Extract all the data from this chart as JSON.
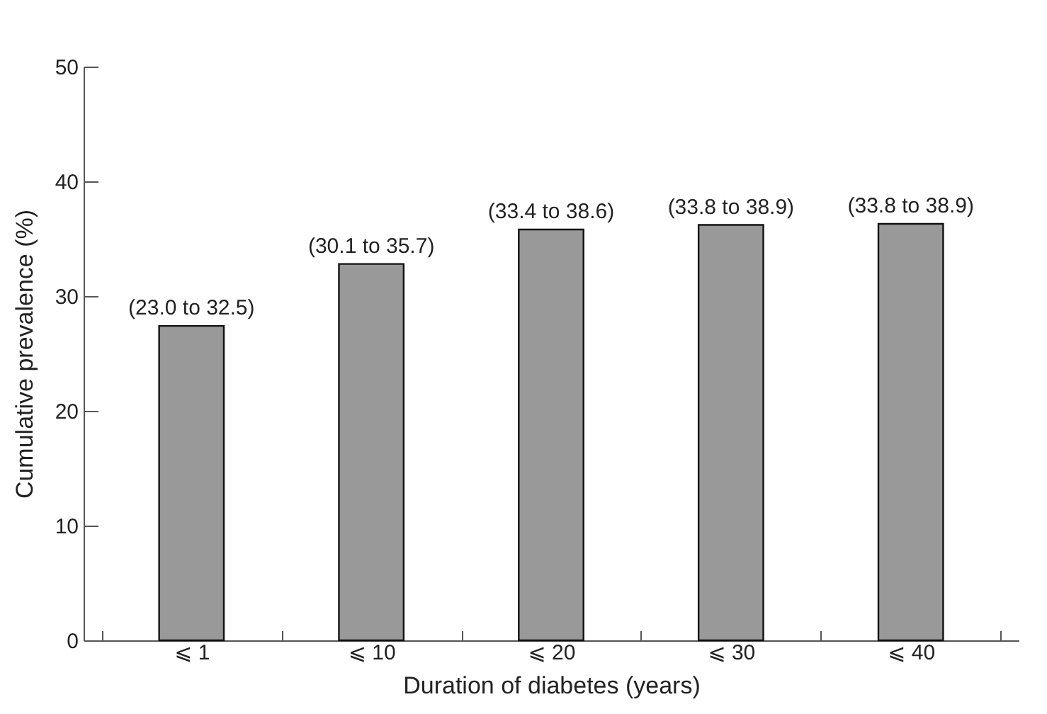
{
  "chart_data": {
    "type": "bar",
    "xlabel": "Duration of diabetes (years)",
    "ylabel": "Cumulative prevalence (%)",
    "categories": [
      "⩽ 1",
      "⩽ 10",
      "⩽ 20",
      "⩽ 30",
      "⩽ 40"
    ],
    "values": [
      27.4,
      32.8,
      35.8,
      36.2,
      36.3
    ],
    "value_labels": [
      "(23.0 to 32.5)",
      "(30.1 to 35.7)",
      "(33.4 to 38.6)",
      "(33.8 to 38.9)",
      "(33.8 to 38.9)"
    ],
    "color": "#999999",
    "ylim": [
      0,
      50
    ],
    "yticks": [
      0,
      10,
      20,
      30,
      40,
      50
    ],
    "grid": false
  }
}
